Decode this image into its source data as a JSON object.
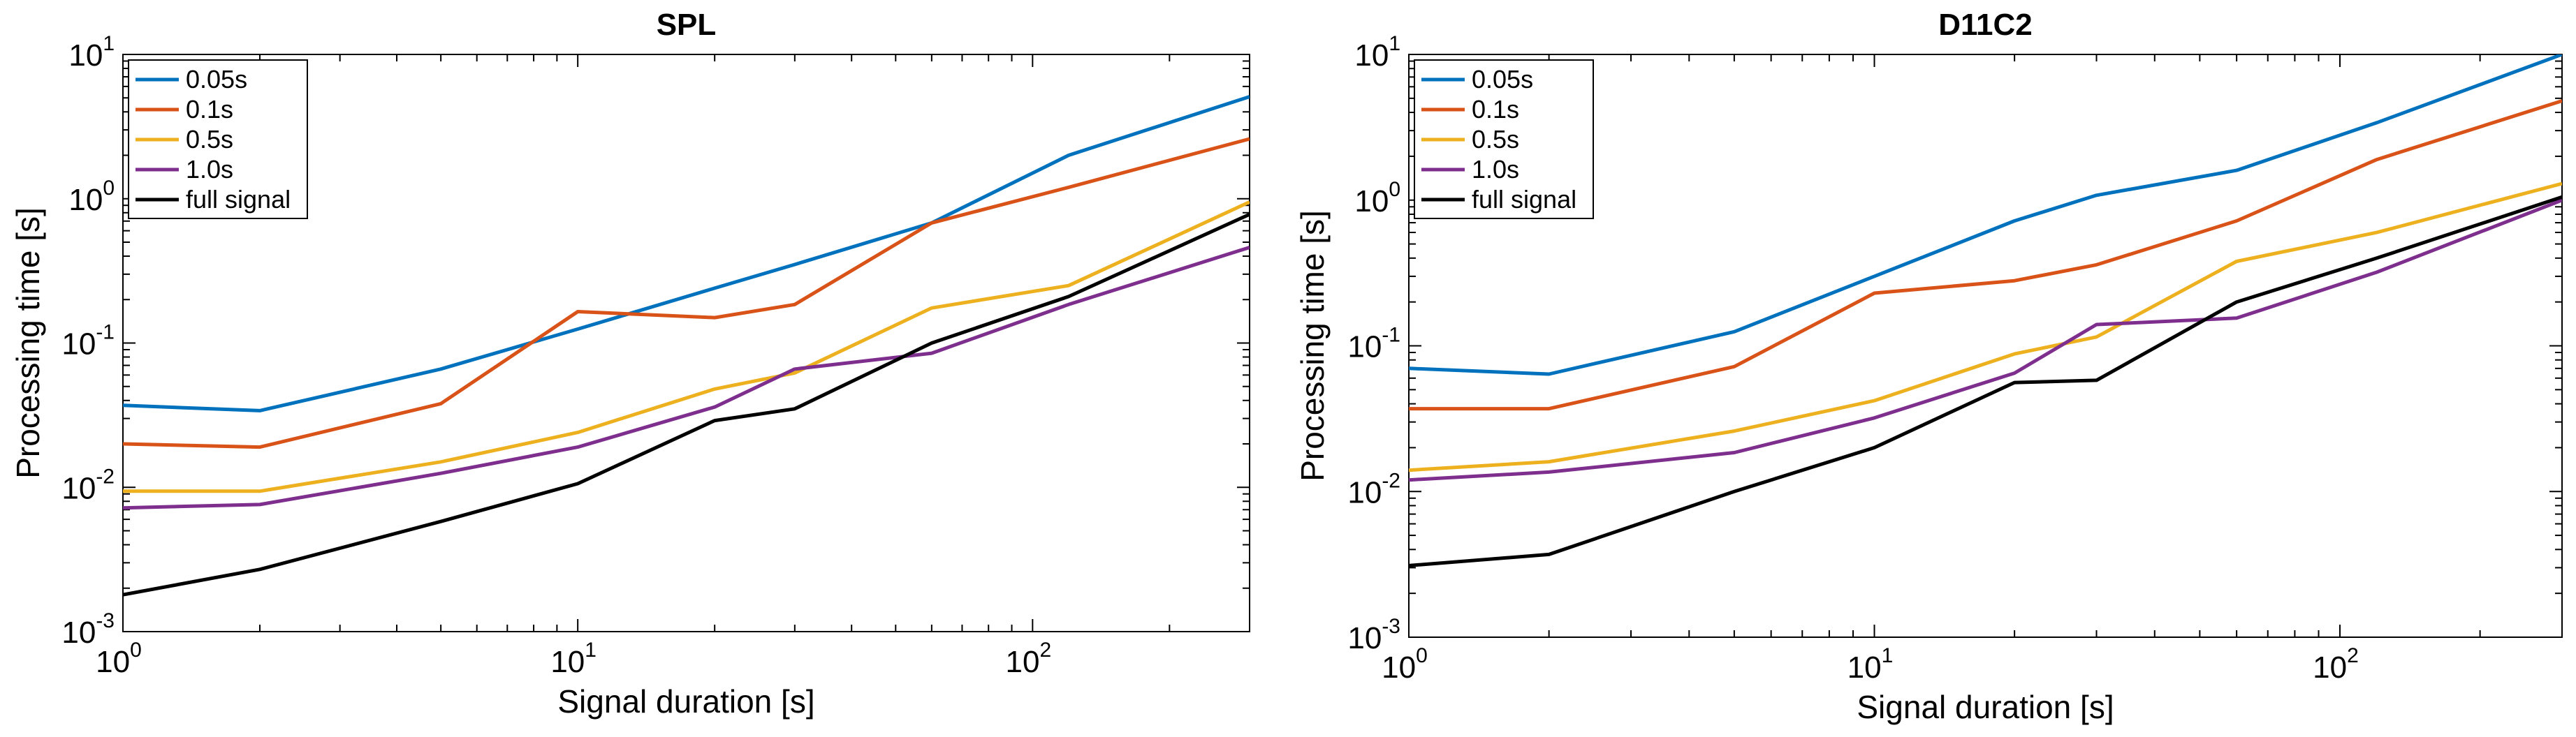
{
  "chart_data": [
    {
      "type": "line",
      "title": "SPL",
      "xlabel": "Signal duration [s]",
      "ylabel": "Processing time [s]",
      "xscale": "log",
      "yscale": "log",
      "xlim": [
        1,
        300
      ],
      "ylim": [
        0.001,
        10
      ],
      "x_ticks": [
        {
          "base": "10",
          "exp": "0"
        },
        {
          "base": "10",
          "exp": "1"
        },
        {
          "base": "10",
          "exp": "2"
        }
      ],
      "y_ticks": [
        {
          "base": "10",
          "exp": "-3"
        },
        {
          "base": "10",
          "exp": "-2"
        },
        {
          "base": "10",
          "exp": "-1"
        },
        {
          "base": "10",
          "exp": "0"
        },
        {
          "base": "10",
          "exp": "1"
        }
      ],
      "grid": false,
      "legend_position": "top-left",
      "series": [
        {
          "name": "0.05s",
          "color": "#0072bd",
          "x": [
            1,
            2,
            5,
            10,
            20,
            30,
            60,
            120,
            300
          ],
          "y": [
            0.037,
            0.034,
            0.066,
            0.125,
            0.24,
            0.35,
            0.68,
            2.0,
            5.1
          ]
        },
        {
          "name": "0.1s",
          "color": "#d95319",
          "x": [
            1,
            2,
            5,
            10,
            20,
            30,
            60,
            120,
            300
          ],
          "y": [
            0.02,
            0.019,
            0.038,
            0.165,
            0.15,
            0.185,
            0.68,
            1.2,
            2.6
          ]
        },
        {
          "name": "0.5s",
          "color": "#edb120",
          "x": [
            1,
            2,
            5,
            10,
            20,
            30,
            60,
            120,
            300
          ],
          "y": [
            0.0094,
            0.0094,
            0.015,
            0.024,
            0.048,
            0.062,
            0.175,
            0.25,
            0.95
          ]
        },
        {
          "name": "1.0s",
          "color": "#7e2f8e",
          "x": [
            1,
            2,
            5,
            10,
            20,
            30,
            60,
            120,
            300
          ],
          "y": [
            0.0072,
            0.0076,
            0.0125,
            0.019,
            0.036,
            0.066,
            0.085,
            0.185,
            0.46
          ]
        },
        {
          "name": "full signal",
          "color": "#000000",
          "x": [
            1,
            2,
            5,
            10,
            20,
            30,
            60,
            120,
            300
          ],
          "y": [
            0.0018,
            0.0027,
            0.0058,
            0.0106,
            0.029,
            0.035,
            0.1,
            0.21,
            0.78
          ]
        }
      ]
    },
    {
      "type": "line",
      "title": "D11C2",
      "xlabel": "Signal duration [s]",
      "ylabel": "Processing time [s]",
      "xscale": "log",
      "yscale": "log",
      "xlim": [
        1,
        300
      ],
      "ylim": [
        0.001,
        10
      ],
      "x_ticks": [
        {
          "base": "10",
          "exp": "0"
        },
        {
          "base": "10",
          "exp": "1"
        },
        {
          "base": "10",
          "exp": "2"
        }
      ],
      "y_ticks": [
        {
          "base": "10",
          "exp": "-3"
        },
        {
          "base": "10",
          "exp": "-2"
        },
        {
          "base": "10",
          "exp": "-1"
        },
        {
          "base": "10",
          "exp": "0"
        },
        {
          "base": "10",
          "exp": "1"
        }
      ],
      "grid": false,
      "legend_position": "top-left",
      "series": [
        {
          "name": "0.05s",
          "color": "#0072bd",
          "x": [
            1,
            2,
            5,
            10,
            20,
            30,
            60,
            120,
            300
          ],
          "y": [
            0.07,
            0.064,
            0.125,
            0.3,
            0.72,
            1.08,
            1.6,
            3.4,
            10.0
          ]
        },
        {
          "name": "0.1s",
          "color": "#d95319",
          "x": [
            1,
            2,
            5,
            10,
            20,
            30,
            60,
            120,
            300
          ],
          "y": [
            0.037,
            0.037,
            0.072,
            0.23,
            0.28,
            0.36,
            0.72,
            1.9,
            4.8
          ]
        },
        {
          "name": "0.5s",
          "color": "#edb120",
          "x": [
            1,
            2,
            5,
            10,
            20,
            30,
            60,
            120,
            300
          ],
          "y": [
            0.014,
            0.016,
            0.026,
            0.042,
            0.088,
            0.115,
            0.38,
            0.6,
            1.3
          ]
        },
        {
          "name": "1.0s",
          "color": "#7e2f8e",
          "x": [
            1,
            2,
            5,
            10,
            20,
            30,
            60,
            120,
            300
          ],
          "y": [
            0.012,
            0.0136,
            0.0185,
            0.032,
            0.065,
            0.14,
            0.155,
            0.32,
            1.0
          ]
        },
        {
          "name": "full signal",
          "color": "#000000",
          "x": [
            1,
            2,
            5,
            10,
            20,
            30,
            60,
            120,
            300
          ],
          "y": [
            0.0031,
            0.0037,
            0.01,
            0.02,
            0.056,
            0.058,
            0.2,
            0.4,
            1.05
          ]
        }
      ]
    }
  ]
}
